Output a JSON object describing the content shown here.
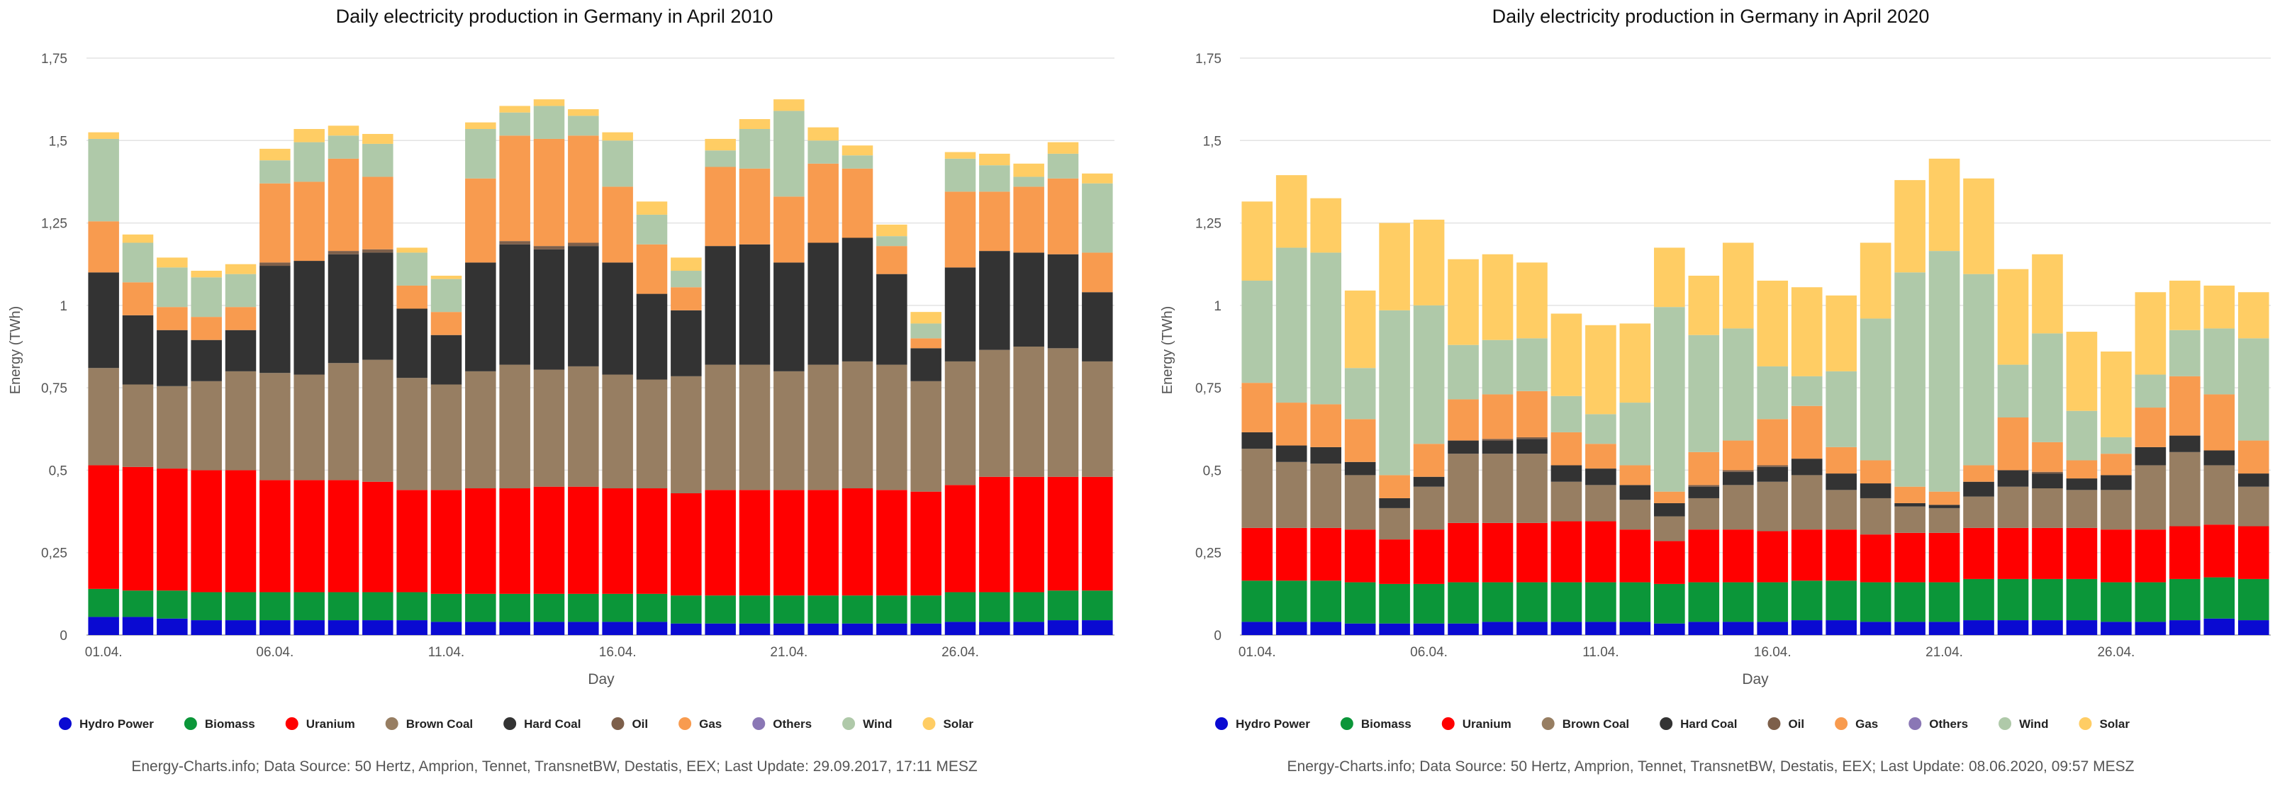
{
  "charts_meta": {
    "colors": {
      "Hydro Power": "#0a0ad2",
      "Biomass": "#0b9639",
      "Uranium": "#ff0000",
      "Brown Coal": "#977e62",
      "Hard Coal": "#333333",
      "Oil": "#7d5f4a",
      "Gas": "#f89b4f",
      "Others": "#8a77b5",
      "Wind": "#afc9a9",
      "Solar": "#ffcd64"
    }
  },
  "chart_data": [
    {
      "type": "bar",
      "stacked": true,
      "title": "Daily electricity production in Germany in April 2010",
      "xlabel": "Day",
      "ylabel": "Energy (TWh)",
      "ylim": [
        0,
        1.75
      ],
      "yticks": [
        "0",
        "0,25",
        "0,5",
        "0,75",
        "1",
        "1,25",
        "1,5",
        "1,75"
      ],
      "ytick_values": [
        0,
        0.25,
        0.5,
        0.75,
        1,
        1.25,
        1.5,
        1.75
      ],
      "xticks": [
        "01.04.",
        "06.04.",
        "11.04.",
        "16.04.",
        "21.04.",
        "26.04."
      ],
      "xtick_days": [
        1,
        6,
        11,
        16,
        21,
        26
      ],
      "categories": [
        1,
        2,
        3,
        4,
        5,
        6,
        7,
        8,
        9,
        10,
        11,
        12,
        13,
        14,
        15,
        16,
        17,
        18,
        19,
        20,
        21,
        22,
        23,
        24,
        25,
        26,
        27,
        28,
        29,
        30
      ],
      "series": [
        {
          "name": "Hydro Power",
          "values": [
            0.055,
            0.055,
            0.05,
            0.045,
            0.045,
            0.045,
            0.045,
            0.045,
            0.045,
            0.045,
            0.04,
            0.04,
            0.04,
            0.04,
            0.04,
            0.04,
            0.04,
            0.035,
            0.035,
            0.035,
            0.035,
            0.035,
            0.035,
            0.035,
            0.035,
            0.04,
            0.04,
            0.04,
            0.045,
            0.045
          ]
        },
        {
          "name": "Biomass",
          "values": [
            0.085,
            0.08,
            0.085,
            0.085,
            0.085,
            0.085,
            0.085,
            0.085,
            0.085,
            0.085,
            0.085,
            0.085,
            0.085,
            0.085,
            0.085,
            0.085,
            0.085,
            0.085,
            0.085,
            0.085,
            0.085,
            0.085,
            0.085,
            0.085,
            0.085,
            0.09,
            0.09,
            0.09,
            0.09,
            0.09
          ]
        },
        {
          "name": "Uranium",
          "values": [
            0.375,
            0.375,
            0.37,
            0.37,
            0.37,
            0.34,
            0.34,
            0.34,
            0.335,
            0.31,
            0.315,
            0.32,
            0.32,
            0.325,
            0.325,
            0.32,
            0.32,
            0.31,
            0.32,
            0.32,
            0.32,
            0.32,
            0.325,
            0.32,
            0.315,
            0.325,
            0.35,
            0.35,
            0.345,
            0.345
          ]
        },
        {
          "name": "Brown Coal",
          "values": [
            0.295,
            0.25,
            0.25,
            0.27,
            0.3,
            0.325,
            0.32,
            0.355,
            0.37,
            0.34,
            0.32,
            0.355,
            0.375,
            0.355,
            0.365,
            0.345,
            0.33,
            0.355,
            0.38,
            0.38,
            0.36,
            0.38,
            0.385,
            0.38,
            0.335,
            0.375,
            0.385,
            0.395,
            0.39,
            0.35
          ]
        },
        {
          "name": "Hard Coal",
          "values": [
            0.29,
            0.21,
            0.17,
            0.125,
            0.125,
            0.325,
            0.345,
            0.33,
            0.325,
            0.21,
            0.15,
            0.33,
            0.365,
            0.365,
            0.365,
            0.34,
            0.26,
            0.2,
            0.36,
            0.365,
            0.33,
            0.37,
            0.375,
            0.275,
            0.1,
            0.285,
            0.3,
            0.285,
            0.285,
            0.21
          ]
        },
        {
          "name": "Oil",
          "values": [
            0,
            0,
            0,
            0,
            0,
            0.01,
            0,
            0.01,
            0.01,
            0,
            0,
            0,
            0.01,
            0.01,
            0.01,
            0,
            0,
            0,
            0,
            0,
            0,
            0,
            0,
            0,
            0,
            0,
            0,
            0,
            0,
            0
          ]
        },
        {
          "name": "Gas",
          "values": [
            0.155,
            0.1,
            0.07,
            0.07,
            0.07,
            0.24,
            0.24,
            0.28,
            0.22,
            0.07,
            0.07,
            0.255,
            0.32,
            0.325,
            0.325,
            0.23,
            0.15,
            0.07,
            0.24,
            0.23,
            0.2,
            0.24,
            0.21,
            0.085,
            0.03,
            0.23,
            0.18,
            0.2,
            0.23,
            0.12
          ]
        },
        {
          "name": "Others",
          "values": [
            0,
            0,
            0,
            0,
            0,
            0,
            0,
            0,
            0,
            0,
            0,
            0,
            0,
            0,
            0,
            0,
            0,
            0,
            0,
            0,
            0,
            0,
            0,
            0,
            0,
            0,
            0,
            0,
            0,
            0
          ]
        },
        {
          "name": "Wind",
          "values": [
            0.25,
            0.12,
            0.12,
            0.12,
            0.1,
            0.07,
            0.12,
            0.07,
            0.1,
            0.1,
            0.1,
            0.15,
            0.07,
            0.1,
            0.06,
            0.14,
            0.09,
            0.05,
            0.05,
            0.12,
            0.26,
            0.07,
            0.04,
            0.03,
            0.045,
            0.1,
            0.08,
            0.03,
            0.075,
            0.21
          ]
        },
        {
          "name": "Solar",
          "values": [
            0.02,
            0.025,
            0.03,
            0.02,
            0.03,
            0.035,
            0.04,
            0.03,
            0.03,
            0.015,
            0.01,
            0.02,
            0.02,
            0.02,
            0.02,
            0.025,
            0.04,
            0.04,
            0.035,
            0.03,
            0.035,
            0.04,
            0.03,
            0.035,
            0.035,
            0.02,
            0.035,
            0.04,
            0.035,
            0.03
          ]
        }
      ],
      "legend": [
        "Hydro Power",
        "Biomass",
        "Uranium",
        "Brown Coal",
        "Hard Coal",
        "Oil",
        "Gas",
        "Others",
        "Wind",
        "Solar"
      ],
      "legend_position": "bottom",
      "source": "Energy-Charts.info; Data Source: 50 Hertz, Amprion, Tennet, TransnetBW, Destatis, EEX; Last Update: 29.09.2017, 17:11 MESZ"
    },
    {
      "type": "bar",
      "stacked": true,
      "title": "Daily electricity production in Germany in April 2020",
      "xlabel": "Day",
      "ylabel": "Energy (TWh)",
      "ylim": [
        0,
        1.75
      ],
      "yticks": [
        "0",
        "0,25",
        "0,5",
        "0,75",
        "1",
        "1,25",
        "1,5",
        "1,75"
      ],
      "ytick_values": [
        0,
        0.25,
        0.5,
        0.75,
        1,
        1.25,
        1.5,
        1.75
      ],
      "xticks": [
        "01.04.",
        "06.04.",
        "11.04.",
        "16.04.",
        "21.04.",
        "26.04."
      ],
      "xtick_days": [
        1,
        6,
        11,
        16,
        21,
        26
      ],
      "categories": [
        1,
        2,
        3,
        4,
        5,
        6,
        7,
        8,
        9,
        10,
        11,
        12,
        13,
        14,
        15,
        16,
        17,
        18,
        19,
        20,
        21,
        22,
        23,
        24,
        25,
        26,
        27,
        28,
        29,
        30
      ],
      "series": [
        {
          "name": "Hydro Power",
          "values": [
            0.04,
            0.04,
            0.04,
            0.035,
            0.035,
            0.035,
            0.035,
            0.04,
            0.04,
            0.04,
            0.04,
            0.04,
            0.035,
            0.04,
            0.04,
            0.04,
            0.045,
            0.045,
            0.04,
            0.04,
            0.04,
            0.045,
            0.045,
            0.045,
            0.045,
            0.04,
            0.04,
            0.045,
            0.05,
            0.045
          ]
        },
        {
          "name": "Biomass",
          "values": [
            0.125,
            0.125,
            0.125,
            0.125,
            0.12,
            0.12,
            0.125,
            0.12,
            0.12,
            0.12,
            0.12,
            0.12,
            0.12,
            0.12,
            0.12,
            0.12,
            0.12,
            0.12,
            0.12,
            0.12,
            0.12,
            0.125,
            0.125,
            0.125,
            0.125,
            0.12,
            0.12,
            0.125,
            0.125,
            0.125
          ]
        },
        {
          "name": "Uranium",
          "values": [
            0.16,
            0.16,
            0.16,
            0.16,
            0.135,
            0.165,
            0.18,
            0.18,
            0.18,
            0.185,
            0.185,
            0.16,
            0.13,
            0.16,
            0.16,
            0.155,
            0.155,
            0.155,
            0.145,
            0.15,
            0.15,
            0.155,
            0.155,
            0.155,
            0.155,
            0.16,
            0.16,
            0.16,
            0.16,
            0.16
          ]
        },
        {
          "name": "Brown Coal",
          "values": [
            0.24,
            0.2,
            0.195,
            0.165,
            0.095,
            0.13,
            0.21,
            0.21,
            0.21,
            0.12,
            0.11,
            0.09,
            0.075,
            0.095,
            0.135,
            0.15,
            0.165,
            0.12,
            0.11,
            0.08,
            0.075,
            0.095,
            0.125,
            0.12,
            0.115,
            0.12,
            0.195,
            0.225,
            0.18,
            0.12
          ]
        },
        {
          "name": "Hard Coal",
          "values": [
            0.05,
            0.05,
            0.05,
            0.04,
            0.03,
            0.03,
            0.04,
            0.04,
            0.045,
            0.05,
            0.05,
            0.045,
            0.04,
            0.035,
            0.04,
            0.045,
            0.05,
            0.05,
            0.045,
            0.01,
            0.01,
            0.045,
            0.05,
            0.045,
            0.035,
            0.045,
            0.055,
            0.05,
            0.045,
            0.04
          ]
        },
        {
          "name": "Oil",
          "values": [
            0,
            0,
            0,
            0,
            0,
            0,
            0,
            0.005,
            0.005,
            0,
            0,
            0,
            0,
            0.005,
            0.005,
            0.005,
            0,
            0,
            0,
            0,
            0,
            0,
            0,
            0.005,
            0,
            0,
            0,
            0,
            0,
            0
          ]
        },
        {
          "name": "Gas",
          "values": [
            0.15,
            0.13,
            0.13,
            0.13,
            0.07,
            0.1,
            0.125,
            0.135,
            0.14,
            0.1,
            0.075,
            0.06,
            0.035,
            0.1,
            0.09,
            0.14,
            0.16,
            0.08,
            0.07,
            0.05,
            0.04,
            0.05,
            0.16,
            0.09,
            0.055,
            0.065,
            0.12,
            0.18,
            0.17,
            0.1
          ]
        },
        {
          "name": "Others",
          "values": [
            0,
            0,
            0,
            0,
            0,
            0,
            0,
            0,
            0,
            0,
            0,
            0,
            0,
            0,
            0,
            0,
            0,
            0,
            0,
            0,
            0,
            0,
            0,
            0,
            0,
            0,
            0,
            0,
            0,
            0
          ]
        },
        {
          "name": "Wind",
          "values": [
            0.31,
            0.47,
            0.46,
            0.155,
            0.5,
            0.42,
            0.165,
            0.165,
            0.16,
            0.11,
            0.09,
            0.19,
            0.56,
            0.355,
            0.34,
            0.16,
            0.09,
            0.23,
            0.43,
            0.65,
            0.73,
            0.58,
            0.16,
            0.33,
            0.15,
            0.05,
            0.1,
            0.14,
            0.2,
            0.31
          ]
        },
        {
          "name": "Solar",
          "values": [
            0.24,
            0.22,
            0.165,
            0.235,
            0.265,
            0.26,
            0.26,
            0.26,
            0.23,
            0.25,
            0.27,
            0.24,
            0.18,
            0.18,
            0.26,
            0.26,
            0.27,
            0.23,
            0.23,
            0.28,
            0.28,
            0.29,
            0.29,
            0.24,
            0.24,
            0.26,
            0.25,
            0.15,
            0.13,
            0.14
          ]
        }
      ],
      "legend": [
        "Hydro Power",
        "Biomass",
        "Uranium",
        "Brown Coal",
        "Hard Coal",
        "Oil",
        "Gas",
        "Others",
        "Wind",
        "Solar"
      ],
      "legend_position": "bottom",
      "source": "Energy-Charts.info; Data Source: 50 Hertz, Amprion, Tennet, TransnetBW, Destatis, EEX; Last Update: 08.06.2020, 09:57 MESZ"
    }
  ]
}
